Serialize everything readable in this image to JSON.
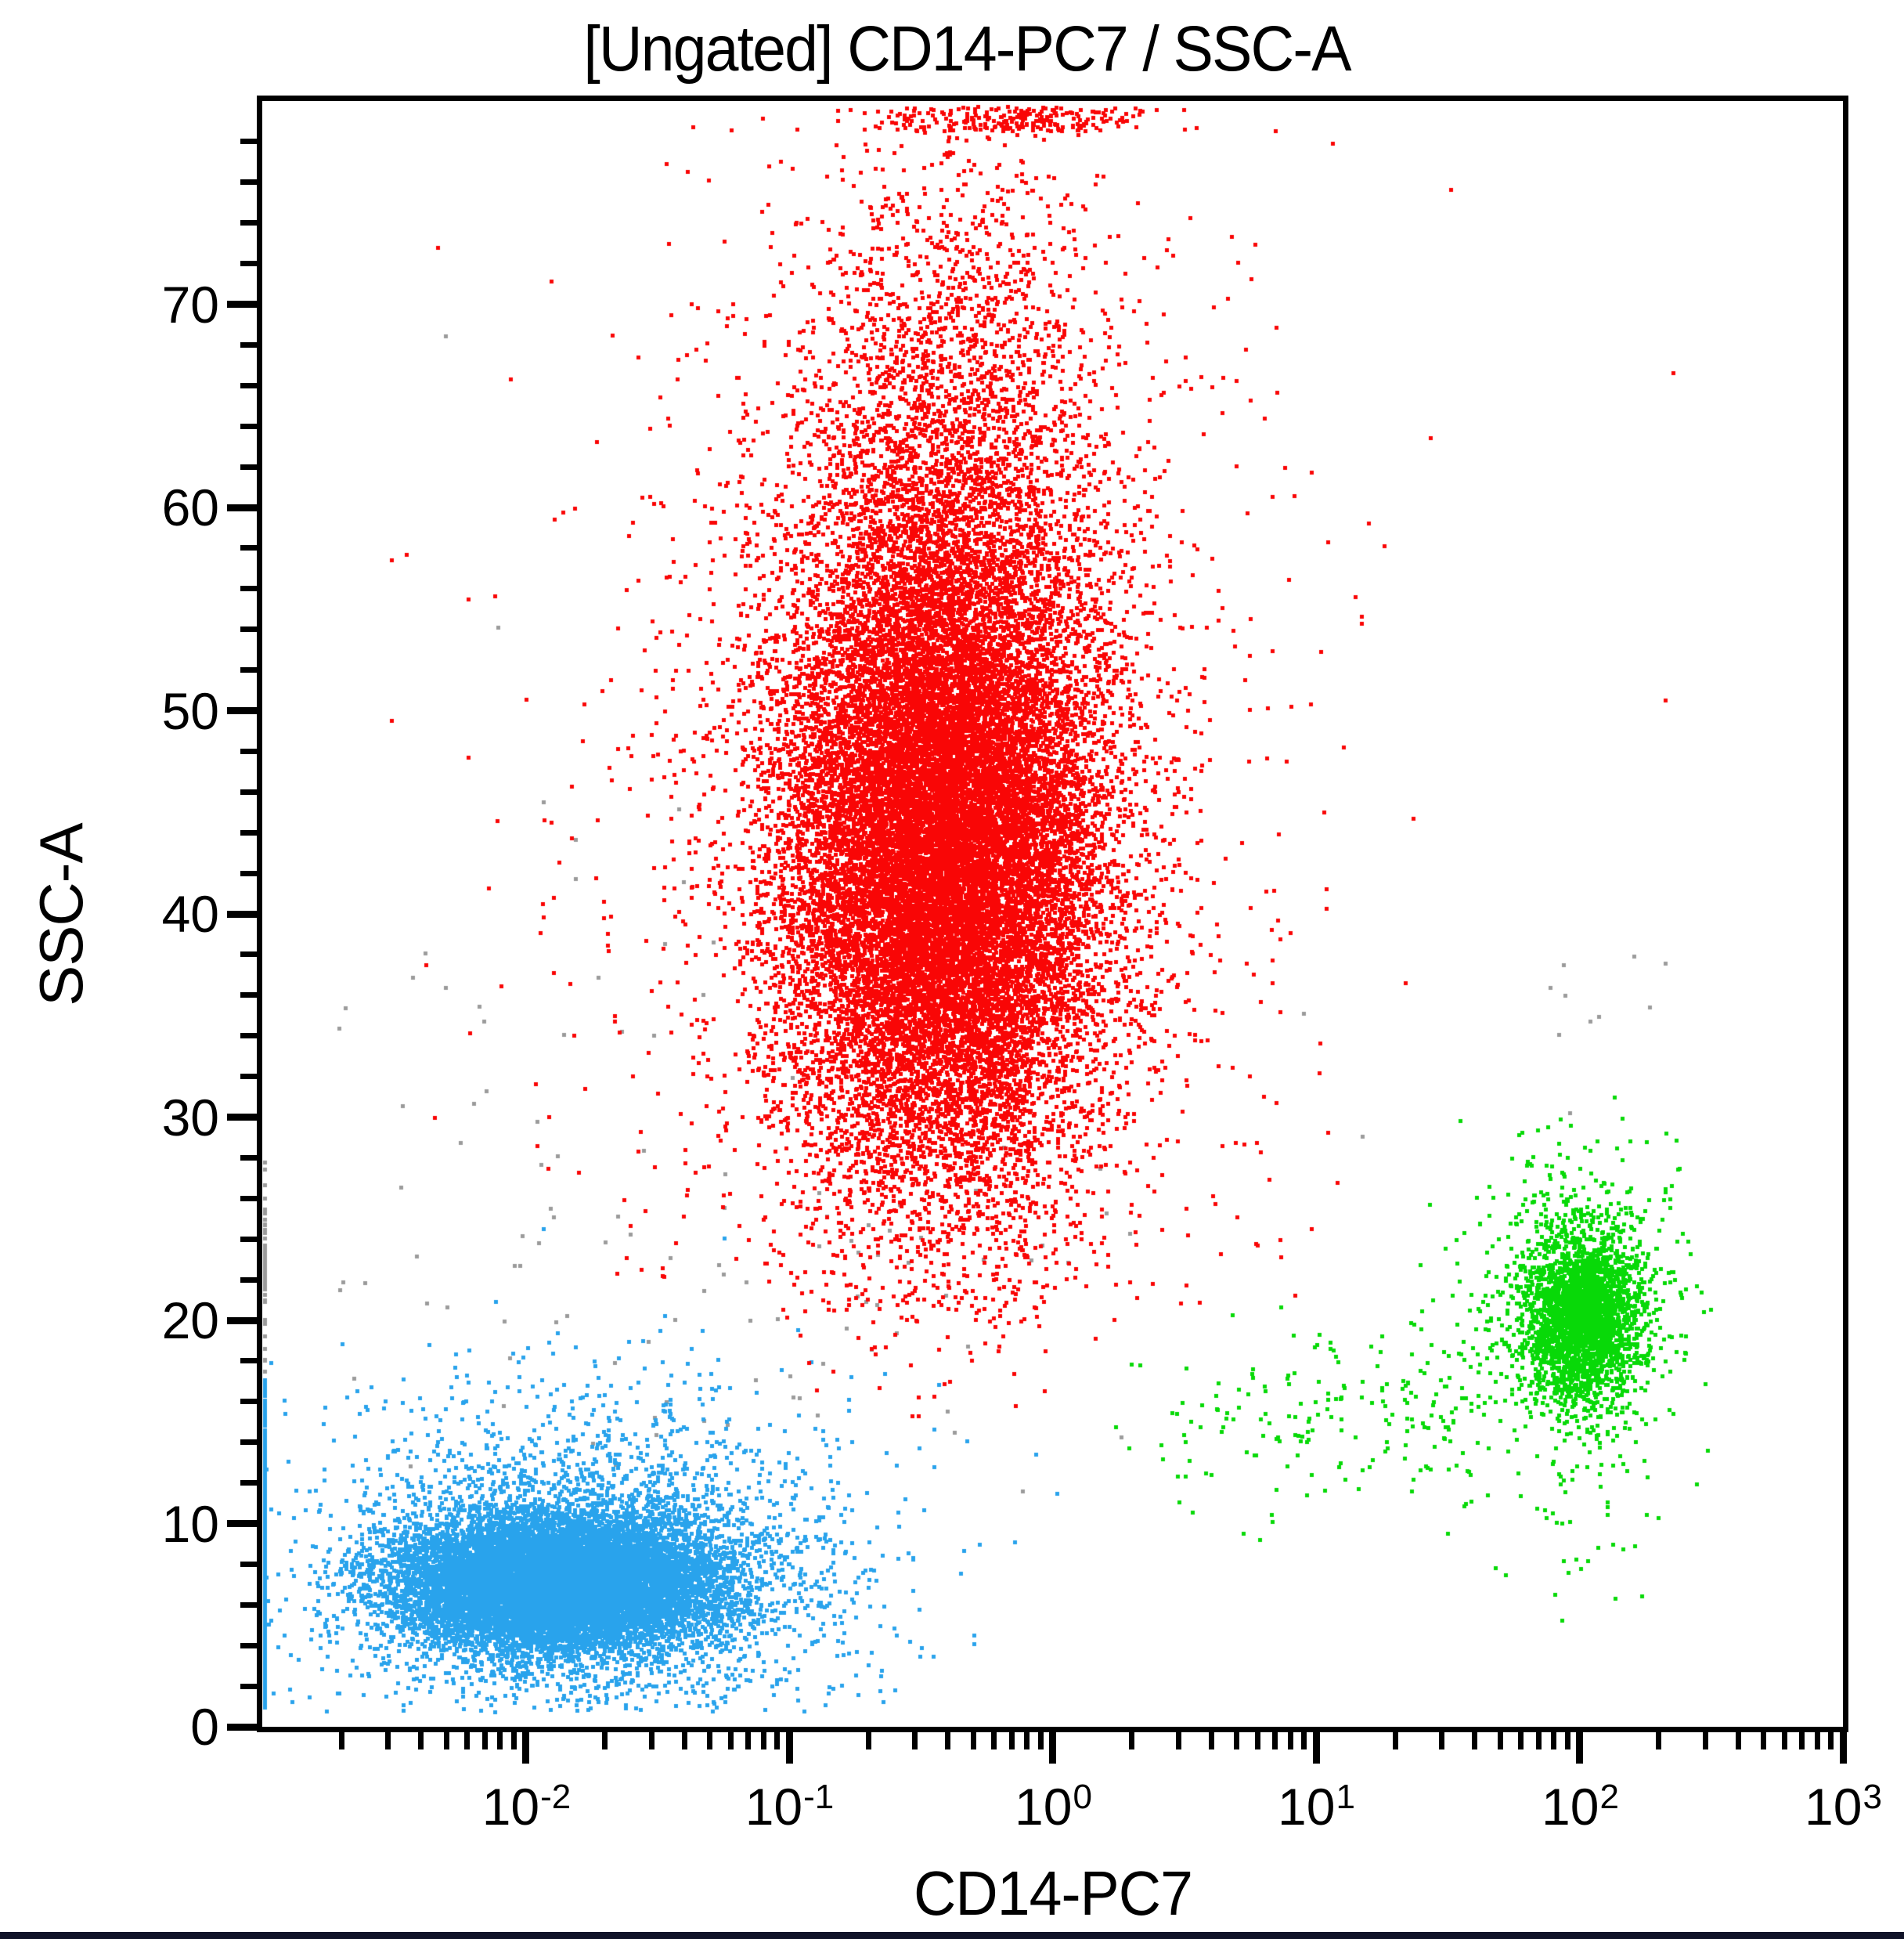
{
  "window": {
    "background": "#ffffff",
    "bottom_bar_color": "#101228"
  },
  "chart_data": {
    "type": "scatter",
    "title": "[Ungated] CD14-PC7 / SSC-A",
    "xlabel": "CD14-PC7",
    "ylabel": "SSC-A",
    "x_scale": "log10",
    "x_range_log10": [
      -3,
      3
    ],
    "y_range": [
      0,
      80
    ],
    "grid": false,
    "legend": "none",
    "dot_size": 5,
    "x_ticks": [
      {
        "base": "10",
        "exp": "-2",
        "value_log10": -2
      },
      {
        "base": "10",
        "exp": "-1",
        "value_log10": -1
      },
      {
        "base": "10",
        "exp": "0",
        "value_log10": 0
      },
      {
        "base": "10",
        "exp": "1",
        "value_log10": 1
      },
      {
        "base": "10",
        "exp": "2",
        "value_log10": 2
      },
      {
        "base": "10",
        "exp": "3",
        "value_log10": 3
      }
    ],
    "x_minor_multiples": [
      2,
      3,
      4,
      5,
      6,
      7,
      8,
      9
    ],
    "y_major_ticks": [
      0,
      10,
      20,
      30,
      40,
      50,
      60,
      70
    ],
    "y_minor_step": 2,
    "colors": {
      "red": "#f90606",
      "blue": "#29a3ec",
      "green": "#08d908",
      "gray": "#9b9b9b",
      "axis": "#000000"
    },
    "rng_seed": 7,
    "populations": [
      {
        "name": "debris-gray",
        "color_key": "gray",
        "components": [
          {
            "kind": "gauss",
            "n": 120,
            "cx": -1.4,
            "sdx": 0.85,
            "cy": 25,
            "sdy": 9,
            "clip_x": [
              -2.75,
              1.3
            ],
            "clip_y": [
              11,
              58
            ]
          },
          {
            "kind": "gauss",
            "n": 8,
            "cx": 1.95,
            "sdx": 0.2,
            "cy": 35,
            "sdy": 2.5,
            "clip_x": [
              1.5,
              2.4
            ],
            "clip_y": [
              30,
              41
            ]
          },
          {
            "kind": "edge_left",
            "n": 55,
            "cy": 23,
            "sdy": 3,
            "clip_y": [
              17.5,
              29
            ]
          }
        ]
      },
      {
        "name": "lymphocytes-blue",
        "color_key": "blue",
        "components": [
          {
            "kind": "gauss",
            "n": 12000,
            "cx": -1.88,
            "sdx": 0.3,
            "cy": 7.2,
            "sdy": 1.6,
            "clip_y": [
              0.5,
              20
            ]
          },
          {
            "kind": "gauss",
            "n": 3200,
            "cx": -1.8,
            "sdx": 0.5,
            "cy": 8.0,
            "sdy": 4.0,
            "clip_x": [
              -3,
              0.2
            ],
            "clip_y": [
              0.8,
              28
            ]
          },
          {
            "kind": "edge_left",
            "n": 480,
            "cy": 8,
            "sdy": 4.5,
            "clip_y": [
              1,
              17.5
            ]
          }
        ]
      },
      {
        "name": "granulocytes-red",
        "color_key": "red",
        "components": [
          {
            "kind": "gauss",
            "n": 3200,
            "cx": -0.4,
            "sdx": 0.28,
            "cy": 60,
            "sdy": 9,
            "clip_y": [
              20,
              79.3
            ]
          },
          {
            "kind": "gauss",
            "n": 20000,
            "cx": -0.42,
            "sdx": 0.3,
            "cy": 43,
            "sdy": 8,
            "clip_y": [
              15,
              79.3
            ]
          },
          {
            "kind": "gauss",
            "n": 2600,
            "cx": -0.46,
            "sdx": 0.6,
            "cy": 46,
            "sdy": 15,
            "clip_x": [
              -2.7,
              1.6
            ],
            "clip_y": [
              20,
              79.3
            ]
          },
          {
            "kind": "top_edge",
            "n": 240,
            "cx": -0.15,
            "sdx": 0.28
          }
        ]
      },
      {
        "name": "monocytes-green",
        "color_key": "green",
        "components": [
          {
            "kind": "trail",
            "n": 210,
            "x_min": 0.2,
            "x_max": 1.62,
            "power": 0.55,
            "cy": 16,
            "sdy": 2.4,
            "clip_y": [
              9,
              22
            ]
          },
          {
            "kind": "gauss",
            "n": 620,
            "cx": 2.0,
            "sdx": 0.21,
            "cy": 21,
            "sdy": 3.8,
            "clip_x": [
              1.35,
              2.5
            ],
            "clip_y": [
              4.5,
              34.5
            ]
          },
          {
            "kind": "gauss",
            "n": 40,
            "cx": 1.95,
            "sdx": 0.16,
            "cy": 10,
            "sdy": 3,
            "clip_y": [
              4,
              15
            ]
          },
          {
            "kind": "gauss",
            "n": 2600,
            "cx": 2.0,
            "sdx": 0.11,
            "cy": 20.2,
            "sdy": 2.1,
            "clip_y": [
              2,
              36
            ]
          }
        ]
      }
    ],
    "outliers": [
      {
        "color_key": "red",
        "x_log10": 2.35,
        "y": 66.7
      },
      {
        "color_key": "red",
        "x_log10": 2.32,
        "y": 50.6
      },
      {
        "color_key": "gray",
        "x_log10": -2.31,
        "y": 68.5
      },
      {
        "color_key": "gray",
        "x_log10": -2.11,
        "y": 54.2
      },
      {
        "color_key": "gray",
        "x_log10": -1.94,
        "y": 45.6
      },
      {
        "color_key": "gray",
        "x_log10": 2.2,
        "y": 38.0
      },
      {
        "color_key": "gray",
        "x_log10": 2.26,
        "y": 35.5
      }
    ]
  }
}
